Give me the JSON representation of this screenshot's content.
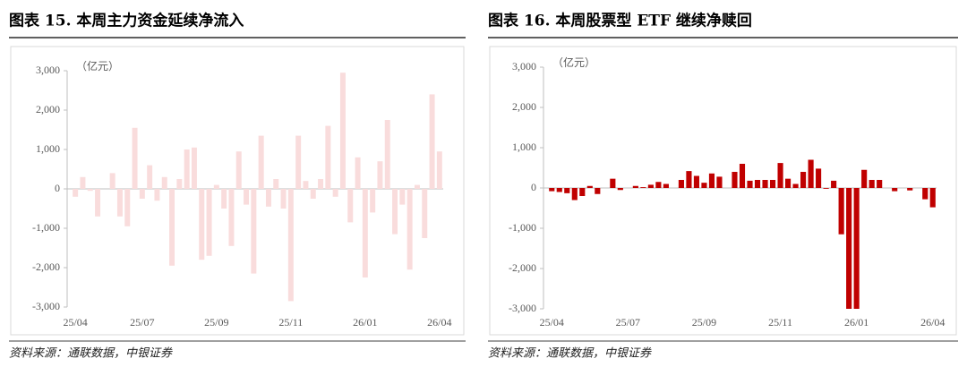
{
  "chart_data": [
    {
      "type": "bar",
      "title": "图表 15. 本周主力资金延续净流入",
      "unit": "（亿元）",
      "source": "资料来源：通联数据，中银证券",
      "color": "#f9dcdc",
      "categories": [
        "25/04",
        null,
        null,
        null,
        null,
        null,
        null,
        null,
        null,
        "25/07",
        null,
        null,
        null,
        null,
        null,
        null,
        null,
        null,
        null,
        "25/09",
        null,
        null,
        null,
        null,
        null,
        null,
        null,
        null,
        null,
        "25/11",
        null,
        null,
        null,
        null,
        null,
        null,
        null,
        null,
        null,
        "26/01",
        null,
        null,
        null,
        null,
        null,
        null,
        null,
        null,
        null,
        "26/04"
      ],
      "values": [
        -200,
        300,
        -50,
        -700,
        0,
        400,
        -700,
        -950,
        1550,
        -250,
        600,
        -300,
        300,
        -1950,
        250,
        1000,
        1050,
        -1800,
        -1700,
        100,
        -500,
        -1450,
        950,
        -400,
        -2150,
        1350,
        -450,
        250,
        -500,
        -2850,
        1350,
        200,
        -250,
        250,
        1600,
        -200,
        2950,
        -850,
        800,
        -2250,
        -600,
        700,
        1750,
        -1150,
        -400,
        -2050,
        100,
        -1250,
        2400,
        950
      ],
      "ylim": [
        -3000,
        3000
      ],
      "yticks": [
        {
          "value": -3000,
          "label": "-3,000"
        },
        {
          "value": -2000,
          "label": "-2,000"
        },
        {
          "value": -1000,
          "label": "-1,000"
        },
        0,
        {
          "value": 1000,
          "label": "1,000"
        },
        {
          "value": 2000,
          "label": "2,000"
        },
        {
          "value": 3000,
          "label": "3,000"
        }
      ]
    },
    {
      "type": "bar",
      "title": "图表 16. 本周股票型 ETF 继续净赎回",
      "unit": "（亿元）",
      "source": "资料来源：通联数据，中银证券",
      "color": "#c00000",
      "categories": [
        "25/04",
        null,
        null,
        null,
        null,
        null,
        null,
        null,
        null,
        null,
        "25/07",
        null,
        null,
        null,
        null,
        null,
        null,
        null,
        null,
        null,
        "25/09",
        null,
        null,
        null,
        null,
        null,
        null,
        null,
        null,
        null,
        "25/11",
        null,
        null,
        null,
        null,
        null,
        null,
        null,
        null,
        null,
        "26/01",
        null,
        null,
        null,
        null,
        null,
        null,
        null,
        null,
        null,
        "26/04"
      ],
      "values": [
        -80,
        -100,
        -130,
        -300,
        -200,
        50,
        -150,
        0,
        230,
        -50,
        0,
        50,
        20,
        80,
        150,
        100,
        0,
        200,
        420,
        300,
        130,
        360,
        280,
        0,
        400,
        600,
        180,
        200,
        200,
        200,
        620,
        230,
        100,
        400,
        700,
        480,
        -20,
        180,
        -1150,
        -3000,
        -3000,
        450,
        200,
        200,
        0,
        -80,
        0,
        -60,
        0,
        -280,
        -480
      ],
      "ylim": [
        -3000,
        3000
      ],
      "yticks": [
        {
          "value": -3000,
          "label": "-3,000"
        },
        {
          "value": -2000,
          "label": "-2,000"
        },
        {
          "value": -1000,
          "label": "-1,000"
        },
        0,
        {
          "value": 1000,
          "label": "1,000"
        },
        {
          "value": 2000,
          "label": "2,000"
        },
        {
          "value": 3000,
          "label": "3,000"
        }
      ]
    }
  ]
}
